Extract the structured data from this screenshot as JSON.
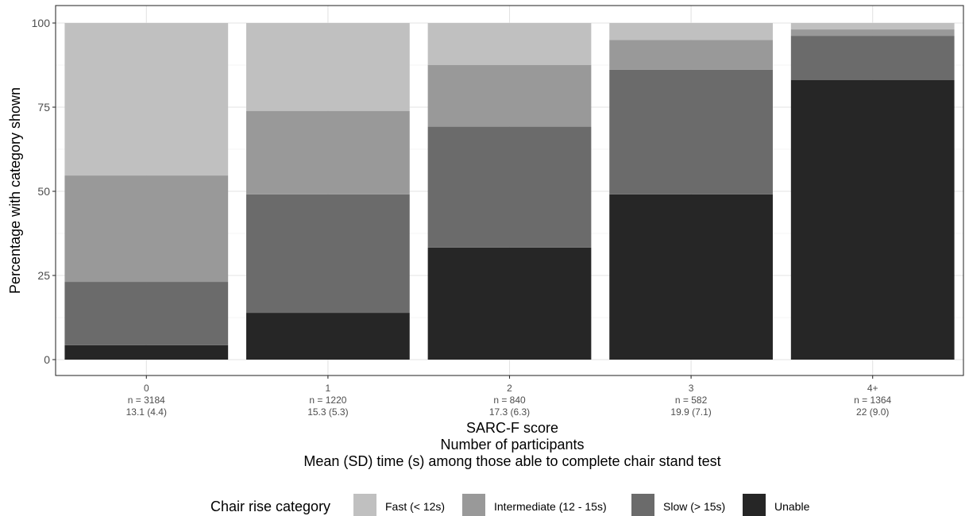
{
  "chart_data": {
    "type": "bar",
    "stacked": true,
    "categories": [
      "0",
      "1",
      "2",
      "3",
      "4+"
    ],
    "n_labels": [
      "n = 3184",
      "n = 1220",
      "n = 840",
      "n = 582",
      "n = 1364"
    ],
    "mean_sd_labels": [
      "13.1 (4.4)",
      "15.3 (5.3)",
      "17.3 (6.3)",
      "19.9 (7.1)",
      "22 (9.0)"
    ],
    "series": [
      {
        "name": "Unable",
        "color": "#262626",
        "values": [
          4.3,
          13.9,
          33.3,
          49.1,
          83.1
        ]
      },
      {
        "name": "Slow (> 15s)",
        "color": "#6b6b6b",
        "values": [
          18.8,
          35.2,
          35.9,
          37.0,
          13.1
        ]
      },
      {
        "name": "Intermediate (12 - 15s)",
        "color": "#999999",
        "values": [
          31.6,
          24.8,
          18.3,
          8.9,
          1.9
        ]
      },
      {
        "name": "Fast (< 12s)",
        "color": "#c0c0c0",
        "values": [
          45.3,
          26.1,
          12.5,
          5.0,
          1.9
        ]
      }
    ],
    "legend_order": [
      "Fast (< 12s)",
      "Intermediate (12 - 15s)",
      "Slow (> 15s)",
      "Unable"
    ],
    "y_ticks": [
      "0",
      "25",
      "50",
      "75",
      "100"
    ],
    "ylim": [
      0,
      100
    ],
    "ylabel": "Percentage with category shown",
    "xlabel_lines": [
      "SARC-F score",
      "Number of participants",
      "Mean (SD) time (s) among those able to complete chair stand test"
    ],
    "legend_title": "Chair rise category",
    "legend_position": "bottom",
    "grid": true
  }
}
